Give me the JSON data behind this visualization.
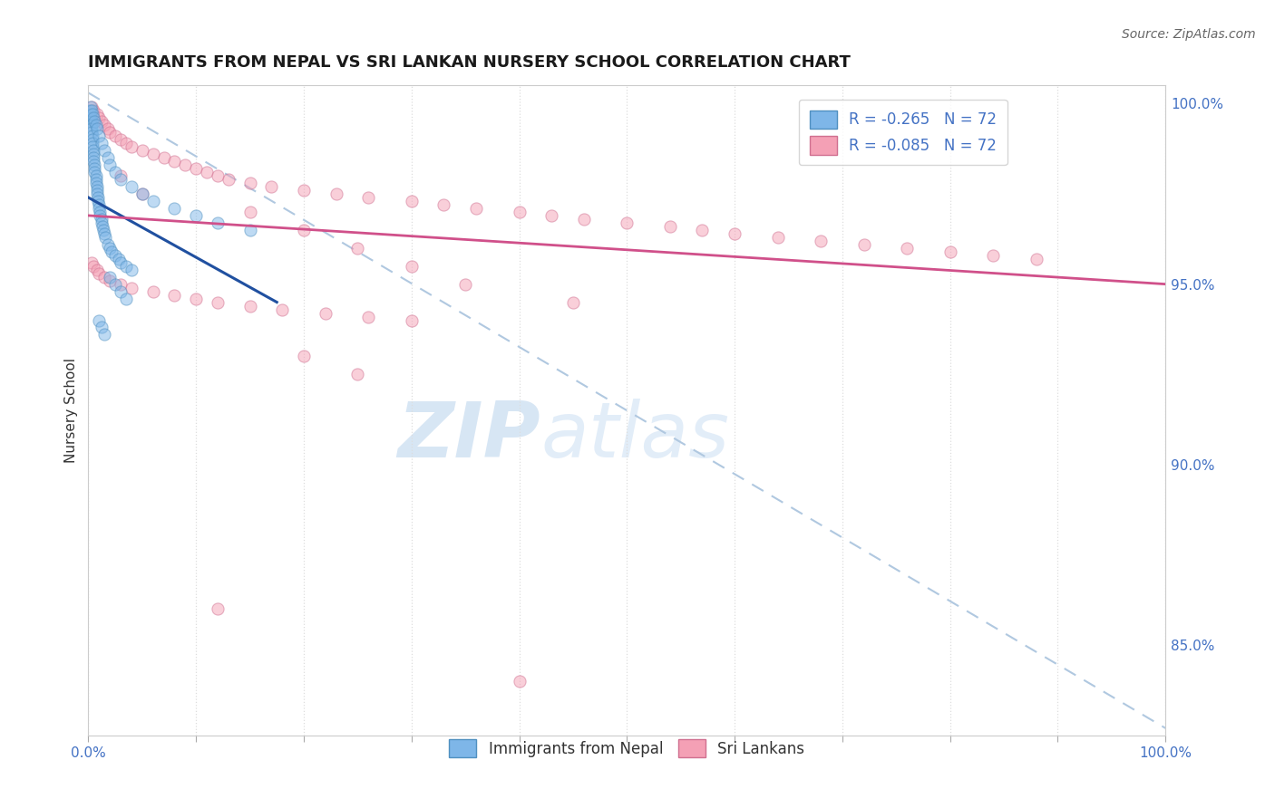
{
  "title": "IMMIGRANTS FROM NEPAL VS SRI LANKAN NURSERY SCHOOL CORRELATION CHART",
  "source": "Source: ZipAtlas.com",
  "ylabel": "Nursery School",
  "ytick_labels": [
    "100.0%",
    "95.0%",
    "90.0%",
    "85.0%"
  ],
  "ytick_values": [
    1.0,
    0.95,
    0.9,
    0.85
  ],
  "legend_label1": "Immigrants from Nepal",
  "legend_label2": "Sri Lankans",
  "r_nepal": -0.265,
  "r_srilanka": -0.085,
  "n": 72,
  "blue_scatter_x": [
    0.001,
    0.002,
    0.002,
    0.003,
    0.003,
    0.003,
    0.003,
    0.004,
    0.004,
    0.004,
    0.004,
    0.005,
    0.005,
    0.005,
    0.005,
    0.006,
    0.006,
    0.006,
    0.007,
    0.007,
    0.007,
    0.008,
    0.008,
    0.008,
    0.009,
    0.009,
    0.01,
    0.01,
    0.011,
    0.011,
    0.012,
    0.012,
    0.013,
    0.014,
    0.015,
    0.016,
    0.018,
    0.02,
    0.022,
    0.025,
    0.028,
    0.03,
    0.035,
    0.04,
    0.002,
    0.003,
    0.004,
    0.005,
    0.006,
    0.007,
    0.008,
    0.01,
    0.012,
    0.015,
    0.018,
    0.02,
    0.025,
    0.03,
    0.04,
    0.05,
    0.06,
    0.08,
    0.1,
    0.12,
    0.15,
    0.02,
    0.025,
    0.03,
    0.035,
    0.01,
    0.012,
    0.015
  ],
  "blue_scatter_y": [
    0.998,
    0.997,
    0.996,
    0.995,
    0.994,
    0.993,
    0.992,
    0.991,
    0.99,
    0.989,
    0.988,
    0.987,
    0.986,
    0.985,
    0.984,
    0.983,
    0.982,
    0.981,
    0.98,
    0.979,
    0.978,
    0.977,
    0.976,
    0.975,
    0.974,
    0.973,
    0.972,
    0.971,
    0.97,
    0.969,
    0.968,
    0.967,
    0.966,
    0.965,
    0.964,
    0.963,
    0.961,
    0.96,
    0.959,
    0.958,
    0.957,
    0.956,
    0.955,
    0.954,
    0.999,
    0.998,
    0.997,
    0.996,
    0.995,
    0.994,
    0.993,
    0.991,
    0.989,
    0.987,
    0.985,
    0.983,
    0.981,
    0.979,
    0.977,
    0.975,
    0.973,
    0.971,
    0.969,
    0.967,
    0.965,
    0.952,
    0.95,
    0.948,
    0.946,
    0.94,
    0.938,
    0.936
  ],
  "pink_scatter_x": [
    0.003,
    0.005,
    0.008,
    0.01,
    0.012,
    0.015,
    0.018,
    0.02,
    0.025,
    0.03,
    0.035,
    0.04,
    0.05,
    0.06,
    0.07,
    0.08,
    0.09,
    0.1,
    0.11,
    0.12,
    0.13,
    0.15,
    0.17,
    0.2,
    0.23,
    0.26,
    0.3,
    0.33,
    0.36,
    0.4,
    0.43,
    0.46,
    0.5,
    0.54,
    0.57,
    0.6,
    0.64,
    0.68,
    0.72,
    0.76,
    0.8,
    0.84,
    0.88,
    0.003,
    0.005,
    0.008,
    0.01,
    0.015,
    0.02,
    0.03,
    0.04,
    0.06,
    0.08,
    0.1,
    0.12,
    0.15,
    0.18,
    0.22,
    0.26,
    0.3,
    0.15,
    0.2,
    0.25,
    0.3,
    0.35,
    0.45,
    0.2,
    0.25,
    0.03,
    0.05,
    0.12,
    0.4
  ],
  "pink_scatter_y": [
    0.999,
    0.998,
    0.997,
    0.996,
    0.995,
    0.994,
    0.993,
    0.992,
    0.991,
    0.99,
    0.989,
    0.988,
    0.987,
    0.986,
    0.985,
    0.984,
    0.983,
    0.982,
    0.981,
    0.98,
    0.979,
    0.978,
    0.977,
    0.976,
    0.975,
    0.974,
    0.973,
    0.972,
    0.971,
    0.97,
    0.969,
    0.968,
    0.967,
    0.966,
    0.965,
    0.964,
    0.963,
    0.962,
    0.961,
    0.96,
    0.959,
    0.958,
    0.957,
    0.956,
    0.955,
    0.954,
    0.953,
    0.952,
    0.951,
    0.95,
    0.949,
    0.948,
    0.947,
    0.946,
    0.945,
    0.944,
    0.943,
    0.942,
    0.941,
    0.94,
    0.97,
    0.965,
    0.96,
    0.955,
    0.95,
    0.945,
    0.93,
    0.925,
    0.98,
    0.975,
    0.86,
    0.84
  ],
  "blue_line_x": [
    0.0,
    0.175
  ],
  "blue_line_y": [
    0.974,
    0.945
  ],
  "pink_line_x": [
    0.0,
    1.0
  ],
  "pink_line_y": [
    0.969,
    0.95
  ],
  "dashed_line_x": [
    0.0,
    1.0
  ],
  "dashed_line_y": [
    1.003,
    0.827
  ],
  "xlim": [
    0.0,
    1.0
  ],
  "ylim": [
    0.825,
    1.005
  ],
  "background_color": "#ffffff",
  "grid_color": "#dddddd",
  "watermark_zip": "ZIP",
  "watermark_atlas": "atlas",
  "title_fontsize": 13,
  "axis_label_color": "#4472C4",
  "scatter_alpha": 0.5,
  "scatter_size": 90,
  "blue_scatter_color": "#7EB6E8",
  "blue_scatter_edge": "#5090C0",
  "pink_scatter_color": "#F4A0B5",
  "pink_scatter_edge": "#D07090",
  "blue_line_color": "#2050A0",
  "pink_line_color": "#D0508A",
  "dashed_line_color": "#B0C8E0"
}
